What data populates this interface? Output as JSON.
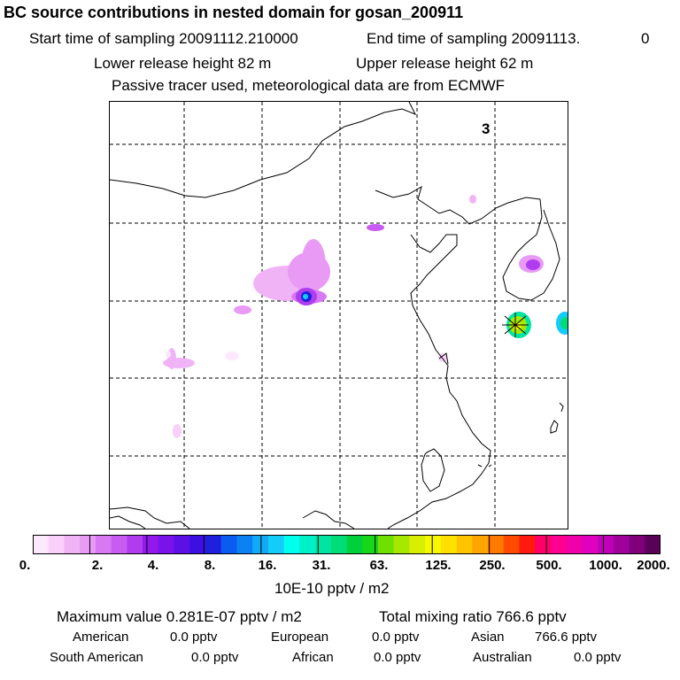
{
  "header": {
    "title": "BC  source contributions in nested domain for gosan_200911",
    "start_label": "Start time of sampling 20091112.210000",
    "end_label": "End time of sampling 20091113.",
    "end_suffix": "0",
    "lower_release": "Lower release height   82 m",
    "upper_release": "Upper release height   62 m",
    "note": "Passive tracer used, meteorological data are from ECMWF"
  },
  "map": {
    "panel_number": "3"
  },
  "colorbar": {
    "colors": [
      "#fde8fd",
      "#f8d0fa",
      "#f0b4f6",
      "#e89af5",
      "#d878f3",
      "#c85cf2",
      "#b03cf0",
      "#9218ee",
      "#7a12ea",
      "#5c10e6",
      "#3c10e0",
      "#1e20dc",
      "#0a5cf0",
      "#0a82f4",
      "#10aaf6",
      "#14ccf8",
      "#00ffee",
      "#00f0c8",
      "#00e6a2",
      "#00dc78",
      "#00d03c",
      "#18d61a",
      "#70e000",
      "#a8e800",
      "#d8f000",
      "#f8f800",
      "#ffe000",
      "#ffc400",
      "#ffa400",
      "#ff7a00",
      "#ff4a00",
      "#ff1a10",
      "#ff0068",
      "#ff0090",
      "#f000a8",
      "#e000c0",
      "#c000b8",
      "#a0009c",
      "#80007c",
      "#5a0058"
    ],
    "tick_labels": [
      "0.",
      "2.",
      "4.",
      "8.",
      "16.",
      "31.",
      "63.",
      "125.",
      "250.",
      "500.",
      "1000.",
      "2000."
    ],
    "units": "10E-10 pptv / m2"
  },
  "footer": {
    "max_value": "Maximum value  0.281E-07 pptv / m2",
    "total_mixing": "Total mixing ratio      766.6 pptv",
    "rows": [
      {
        "label": "American",
        "value": "0.0 pptv"
      },
      {
        "label": "European",
        "value": "0.0 pptv"
      },
      {
        "label": "Asian",
        "value": "766.6 pptv"
      },
      {
        "label": "South American",
        "value": "0.0 pptv"
      },
      {
        "label": "African",
        "value": "0.0 pptv"
      },
      {
        "label": "Australian",
        "value": "0.0 pptv"
      }
    ]
  }
}
